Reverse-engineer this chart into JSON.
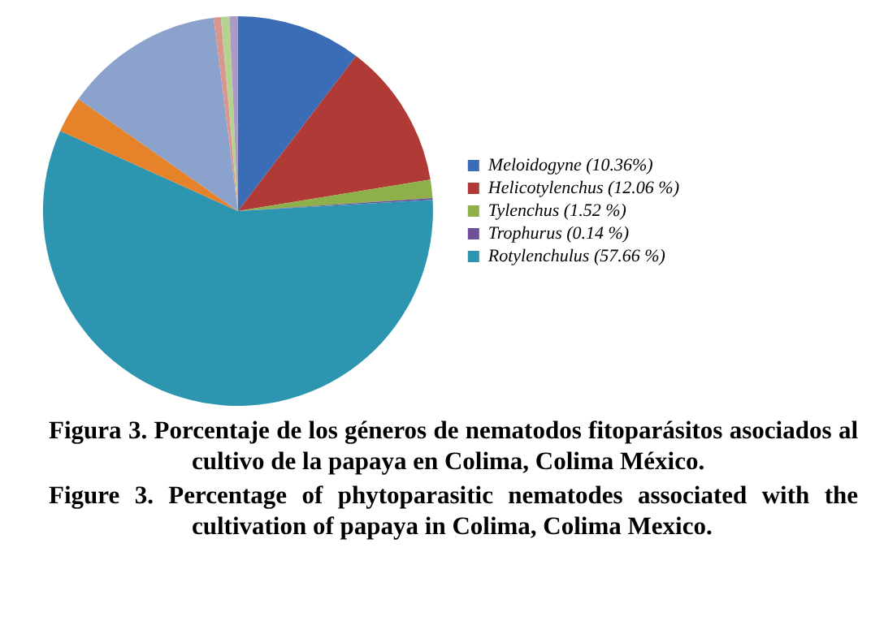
{
  "chart_data": {
    "type": "pie",
    "categories": [
      "Meloidogyne (10.36%)",
      "Helicotylenchus (12.06 %)",
      "Tylenchus (1.52 %)",
      "Trophurus (0.14 %)",
      "Rotylenchulus (57.66 %)",
      null,
      null,
      null,
      null,
      null
    ],
    "values": [
      10.36,
      12.06,
      1.52,
      0.14,
      57.66,
      3.0,
      13.26,
      0.6,
      0.7,
      0.7
    ],
    "colors": [
      "#3a6db5",
      "#b03a35",
      "#8db04a",
      "#6e4f9a",
      "#2e95b0",
      "#e6822a",
      "#8aa2cc",
      "#d99590",
      "#b5d38f",
      "#a99cc8"
    ],
    "legend": "right",
    "annotations": [
      "Figura 3. Porcentaje de los géneros de nematodos fitoparásitos asociados al cultivo de la papaya en Colima, Colima México.",
      "Figure 3. Percentage of phytoparasitic nematodes associated with the cultivation of papaya in Colima, Colima Mexico."
    ]
  }
}
